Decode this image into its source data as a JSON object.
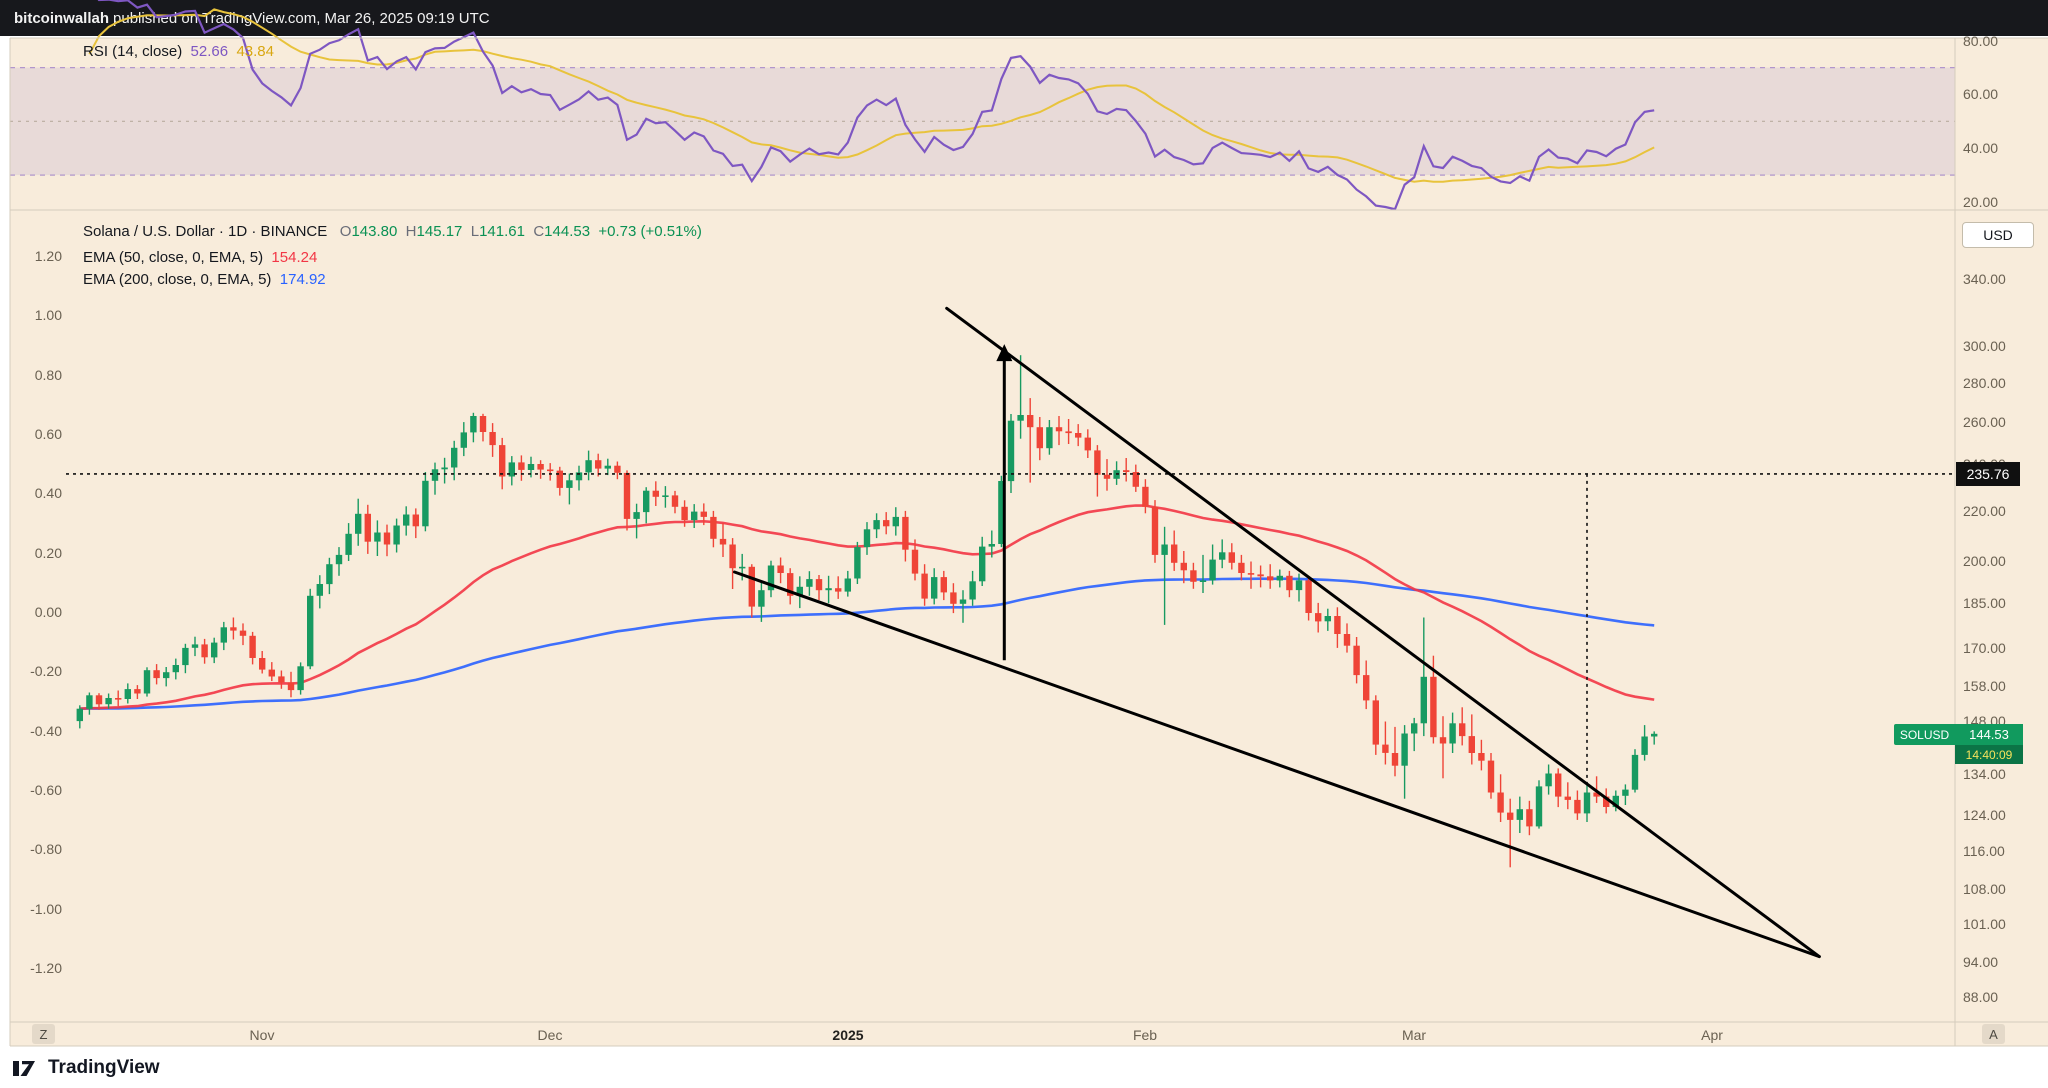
{
  "attribution": {
    "author": "bitcoinwallah",
    "rest": " published on TradingView.com, Mar 26, 2025 09:19 UTC"
  },
  "rsi_panel": {
    "legend": {
      "title": "RSI (14, close)",
      "value": "52.66",
      "ma_value": "43.84"
    },
    "axis_ticks": [
      80,
      60,
      40,
      20
    ]
  },
  "main_panel": {
    "legend": {
      "title": "Solana / U.S. Dollar · 1D · BINANCE",
      "o_label": "O",
      "o_value": "143.80",
      "h_label": "H",
      "h_value": "145.17",
      "l_label": "L",
      "l_value": "141.61",
      "c_label": "C",
      "c_value": "144.53",
      "change": "+0.73 (+0.51%)"
    },
    "ema50_legend": {
      "label": "EMA (50, close, 0, EMA, 5)",
      "value": "154.24"
    },
    "ema200_legend": {
      "label": "EMA (200, close, 0, EMA, 5)",
      "value": "174.92"
    },
    "currency": "USD",
    "level_label": "235.76",
    "ticker": {
      "symbol": "SOLUSD",
      "price": "144.53",
      "countdown": "14:40:09"
    },
    "right_axis_ticks": [
      340,
      300,
      280,
      260,
      240,
      220,
      200,
      185,
      170,
      158,
      148,
      134,
      124,
      116,
      108,
      101,
      94,
      88
    ],
    "left_axis_ticks": [
      1.2,
      1.0,
      0.8,
      0.6,
      0.4,
      0.2,
      0.0,
      -0.2,
      -0.4,
      -0.6,
      -0.8,
      -1.0,
      -1.2
    ]
  },
  "time_axis": {
    "left_button": "Z",
    "right_button": "A"
  },
  "footer": {
    "brand": "TradingView"
  },
  "colors": {
    "background": "#f8ecdb",
    "up": "#189a61",
    "down": "#ef4437",
    "ema50": "#f23645",
    "ema200": "#2962ff",
    "rsi": "#7e57c2",
    "rsi_ma": "#e8c33c",
    "trend": "#000000",
    "frame": "#d5ccbc"
  },
  "chart_data": {
    "type": "candlestick",
    "title": "Solana / U.S. Dollar · 1D · BINANCE",
    "symbol": "SOLUSD",
    "start_date": "2024-10-13",
    "log_scale": true,
    "price_ylim": [
      84,
      386
    ],
    "rsi_ylim": [
      17,
      81
    ],
    "rsi_bands": {
      "upper": 70,
      "middle": 50,
      "lower": 30
    },
    "indicators": {
      "ema50_period": 50,
      "ema200_period": 200,
      "rsi_period": 14,
      "rsi_ma_period": 14,
      "rsi_current": 52.66,
      "rsi_ma_current": 43.84,
      "ema50_current": 154.24,
      "ema200_current": 174.92
    },
    "last_bar": {
      "o": 143.8,
      "h": 145.17,
      "l": 141.61,
      "c": 144.53,
      "change": 0.73,
      "change_pct": 0.51
    },
    "x_ticks": [
      {
        "label": "Nov",
        "index": 19
      },
      {
        "label": "Dec",
        "index": 49
      },
      {
        "label": "2025",
        "index": 80,
        "major": true
      },
      {
        "label": "Feb",
        "index": 111
      },
      {
        "label": "Mar",
        "index": 139
      },
      {
        "label": "Apr",
        "index": 170
      }
    ],
    "annotations": {
      "trendlines": [
        {
          "i1": 90.3,
          "p1": 322,
          "i2": 181.2,
          "p2": 95
        },
        {
          "i1": 68.2,
          "p1": 196,
          "i2": 181.2,
          "p2": 95
        }
      ],
      "arrow": {
        "i": 96.3,
        "p_from": 166,
        "p_to": 301
      },
      "hline": {
        "p": 235.76
      },
      "vline": {
        "i": 157,
        "p_from": 235.76,
        "p_to": 131
      }
    },
    "ohlc": [
      [
        148.0,
        152.5,
        146.0,
        151.5
      ],
      [
        151.5,
        156.2,
        149.8,
        155.4
      ],
      [
        155.4,
        156.0,
        151.2,
        152.8
      ],
      [
        152.8,
        155.9,
        151.5,
        154.6
      ],
      [
        154.6,
        156.8,
        152.2,
        154.3
      ],
      [
        154.3,
        158.9,
        153.0,
        157.2
      ],
      [
        157.2,
        158.4,
        154.3,
        155.9
      ],
      [
        155.9,
        163.8,
        155.0,
        162.9
      ],
      [
        162.9,
        164.8,
        158.6,
        160.5
      ],
      [
        160.5,
        163.9,
        158.0,
        162.3
      ],
      [
        162.3,
        166.5,
        160.1,
        164.5
      ],
      [
        164.5,
        171.2,
        162.0,
        169.9
      ],
      [
        169.9,
        173.5,
        167.3,
        171.0
      ],
      [
        171.0,
        172.8,
        164.9,
        166.9
      ],
      [
        166.9,
        173.2,
        165.1,
        171.6
      ],
      [
        171.6,
        178.4,
        169.2,
        176.6
      ],
      [
        176.6,
        179.9,
        172.6,
        175.5
      ],
      [
        175.5,
        177.9,
        170.8,
        173.8
      ],
      [
        173.8,
        175.1,
        164.7,
        166.7
      ],
      [
        166.7,
        168.9,
        161.9,
        163.1
      ],
      [
        163.1,
        165.4,
        159.6,
        161.0
      ],
      [
        161.0,
        162.8,
        157.3,
        159.2
      ],
      [
        159.2,
        162.4,
        154.8,
        156.9
      ],
      [
        156.9,
        165.3,
        155.6,
        164.1
      ],
      [
        164.1,
        189.9,
        163.2,
        187.4
      ],
      [
        187.4,
        194.8,
        183.0,
        191.6
      ],
      [
        191.6,
        201.3,
        188.0,
        198.9
      ],
      [
        198.9,
        205.4,
        194.6,
        202.4
      ],
      [
        202.4,
        214.9,
        200.1,
        210.6
      ],
      [
        210.6,
        225.0,
        205.9,
        218.7
      ],
      [
        218.7,
        222.4,
        202.8,
        207.5
      ],
      [
        207.5,
        216.0,
        202.0,
        211.1
      ],
      [
        211.1,
        214.3,
        201.9,
        206.4
      ],
      [
        206.4,
        216.7,
        203.3,
        213.9
      ],
      [
        213.9,
        221.8,
        209.9,
        218.4
      ],
      [
        218.4,
        220.9,
        208.9,
        213.6
      ],
      [
        213.6,
        236.6,
        211.6,
        232.7
      ],
      [
        232.7,
        240.8,
        226.7,
        237.8
      ],
      [
        237.8,
        243.0,
        231.5,
        238.6
      ],
      [
        238.6,
        250.9,
        232.9,
        247.6
      ],
      [
        247.6,
        259.9,
        243.8,
        254.9
      ],
      [
        254.9,
        264.5,
        250.2,
        262.9
      ],
      [
        262.9,
        264.0,
        250.6,
        255.1
      ],
      [
        255.1,
        259.4,
        243.4,
        248.9
      ],
      [
        248.9,
        252.3,
        229.0,
        234.6
      ],
      [
        234.6,
        243.8,
        230.7,
        240.9
      ],
      [
        240.9,
        244.1,
        232.7,
        237.5
      ],
      [
        237.5,
        243.5,
        234.2,
        240.2
      ],
      [
        240.2,
        241.9,
        233.6,
        237.7
      ],
      [
        237.7,
        240.6,
        232.8,
        237.2
      ],
      [
        237.2,
        238.9,
        226.3,
        229.6
      ],
      [
        229.6,
        235.9,
        222.6,
        232.9
      ],
      [
        232.9,
        239.4,
        228.5,
        236.4
      ],
      [
        236.4,
        246.3,
        232.9,
        241.9
      ],
      [
        241.9,
        244.9,
        234.6,
        238.1
      ],
      [
        238.1,
        242.6,
        235.2,
        239.4
      ],
      [
        239.4,
        241.3,
        233.4,
        236.2
      ],
      [
        236.2,
        237.3,
        211.9,
        216.6
      ],
      [
        216.6,
        222.9,
        208.8,
        219.4
      ],
      [
        219.4,
        229.9,
        214.8,
        228.4
      ],
      [
        228.4,
        232.5,
        221.9,
        225.8
      ],
      [
        225.8,
        230.4,
        221.2,
        226.4
      ],
      [
        226.4,
        228.3,
        218.9,
        221.6
      ],
      [
        221.6,
        224.3,
        213.4,
        216.1
      ],
      [
        216.1,
        222.7,
        212.9,
        219.6
      ],
      [
        219.6,
        223.0,
        214.1,
        217.4
      ],
      [
        217.4,
        219.9,
        205.3,
        208.6
      ],
      [
        208.6,
        214.9,
        201.6,
        206.4
      ],
      [
        206.4,
        208.9,
        189.8,
        197.4
      ],
      [
        197.4,
        202.8,
        192.9,
        197.9
      ],
      [
        197.9,
        198.9,
        179.9,
        183.6
      ],
      [
        183.6,
        192.4,
        178.4,
        189.4
      ],
      [
        189.4,
        200.2,
        186.9,
        198.4
      ],
      [
        198.4,
        201.4,
        191.9,
        195.6
      ],
      [
        195.6,
        197.4,
        184.4,
        187.4
      ],
      [
        187.4,
        194.4,
        183.1,
        190.6
      ],
      [
        190.6,
        196.3,
        187.4,
        193.4
      ],
      [
        193.4,
        194.9,
        185.9,
        189.4
      ],
      [
        189.4,
        194.6,
        184.8,
        190.1
      ],
      [
        190.1,
        194.4,
        186.3,
        188.9
      ],
      [
        188.9,
        196.4,
        187.1,
        193.6
      ],
      [
        193.6,
        207.4,
        191.6,
        205.4
      ],
      [
        205.4,
        215.3,
        202.4,
        212.4
      ],
      [
        212.4,
        218.9,
        208.9,
        216.1
      ],
      [
        216.1,
        219.4,
        210.4,
        213.6
      ],
      [
        213.6,
        221.4,
        209.9,
        217.4
      ],
      [
        217.4,
        219.9,
        199.9,
        204.4
      ],
      [
        204.4,
        208.4,
        192.9,
        195.4
      ],
      [
        195.4,
        198.9,
        183.9,
        186.4
      ],
      [
        186.4,
        197.4,
        184.4,
        194.1
      ],
      [
        194.1,
        196.4,
        185.9,
        188.6
      ],
      [
        188.6,
        191.9,
        181.4,
        184.6
      ],
      [
        184.6,
        189.4,
        178.1,
        186.1
      ],
      [
        186.1,
        196.4,
        183.9,
        192.6
      ],
      [
        192.6,
        209.4,
        190.9,
        205.6
      ],
      [
        205.6,
        211.9,
        201.4,
        206.6
      ],
      [
        206.6,
        234.9,
        205.4,
        232.6
      ],
      [
        232.6,
        263.9,
        227.4,
        260.6
      ],
      [
        260.6,
        294.8,
        251.9,
        263.4
      ],
      [
        263.4,
        271.9,
        231.9,
        257.4
      ],
      [
        257.4,
        262.4,
        241.9,
        247.4
      ],
      [
        247.4,
        260.9,
        244.4,
        257.4
      ],
      [
        257.4,
        262.9,
        248.9,
        255.4
      ],
      [
        255.4,
        261.4,
        249.4,
        254.6
      ],
      [
        254.6,
        258.9,
        248.4,
        252.4
      ],
      [
        252.4,
        256.4,
        242.9,
        246.4
      ],
      [
        246.4,
        248.9,
        225.9,
        235.4
      ],
      [
        235.4,
        242.4,
        228.4,
        233.6
      ],
      [
        233.6,
        241.4,
        230.9,
        237.4
      ],
      [
        237.4,
        242.9,
        232.4,
        236.6
      ],
      [
        236.6,
        239.9,
        227.9,
        230.1
      ],
      [
        230.1,
        233.4,
        218.9,
        221.6
      ],
      [
        221.6,
        224.4,
        199.4,
        202.4
      ],
      [
        202.4,
        213.4,
        177.4,
        206.4
      ],
      [
        206.4,
        211.9,
        196.4,
        199.4
      ],
      [
        199.4,
        203.9,
        191.9,
        196.6
      ],
      [
        196.6,
        199.4,
        189.9,
        192.4
      ],
      [
        192.4,
        202.4,
        188.4,
        192.9
      ],
      [
        192.9,
        206.4,
        191.4,
        200.6
      ],
      [
        200.6,
        208.4,
        197.4,
        203.4
      ],
      [
        203.4,
        206.9,
        196.9,
        199.4
      ],
      [
        199.4,
        202.4,
        192.9,
        195.6
      ],
      [
        195.6,
        199.9,
        189.9,
        195.1
      ],
      [
        195.1,
        198.4,
        190.4,
        194.4
      ],
      [
        194.4,
        198.9,
        189.9,
        192.9
      ],
      [
        192.9,
        196.9,
        190.4,
        194.6
      ],
      [
        194.6,
        196.4,
        186.9,
        189.4
      ],
      [
        189.4,
        195.4,
        185.4,
        192.9
      ],
      [
        192.9,
        194.4,
        178.9,
        181.4
      ],
      [
        181.4,
        184.9,
        174.9,
        178.6
      ],
      [
        178.6,
        182.9,
        175.4,
        180.4
      ],
      [
        180.4,
        183.4,
        169.9,
        174.4
      ],
      [
        174.4,
        177.9,
        168.4,
        170.6
      ],
      [
        170.6,
        173.4,
        158.9,
        161.4
      ],
      [
        161.4,
        165.9,
        151.4,
        153.9
      ],
      [
        153.9,
        155.4,
        138.9,
        141.6
      ],
      [
        141.6,
        147.9,
        136.4,
        139.4
      ],
      [
        139.4,
        146.4,
        133.4,
        136.1
      ],
      [
        136.1,
        146.9,
        127.9,
        144.6
      ],
      [
        144.6,
        148.9,
        139.9,
        147.4
      ],
      [
        147.4,
        179.9,
        143.9,
        160.9
      ],
      [
        160.9,
        167.4,
        141.9,
        143.6
      ],
      [
        143.6,
        149.4,
        132.9,
        141.9
      ],
      [
        141.9,
        150.4,
        139.4,
        147.4
      ],
      [
        147.4,
        151.9,
        141.4,
        143.9
      ],
      [
        143.9,
        149.9,
        136.4,
        139.4
      ],
      [
        139.4,
        142.9,
        134.9,
        137.4
      ],
      [
        137.4,
        139.4,
        127.9,
        129.4
      ],
      [
        129.4,
        133.9,
        122.4,
        124.6
      ],
      [
        124.6,
        127.9,
        112.4,
        122.9
      ],
      [
        122.9,
        128.4,
        119.9,
        125.4
      ],
      [
        125.4,
        127.4,
        119.4,
        121.4
      ],
      [
        121.4,
        132.4,
        120.9,
        130.9
      ],
      [
        130.9,
        136.4,
        128.9,
        134.1
      ],
      [
        134.1,
        135.4,
        125.9,
        128.4
      ],
      [
        128.4,
        131.9,
        125.4,
        127.6
      ],
      [
        127.6,
        129.9,
        122.9,
        124.4
      ],
      [
        124.4,
        131.4,
        122.4,
        129.4
      ],
      [
        129.4,
        133.4,
        126.9,
        128.4
      ],
      [
        128.4,
        130.4,
        124.4,
        125.9
      ],
      [
        125.9,
        129.9,
        124.9,
        128.6
      ],
      [
        128.6,
        131.4,
        126.4,
        130.1
      ],
      [
        130.1,
        140.4,
        129.4,
        138.9
      ],
      [
        138.9,
        146.9,
        137.4,
        143.8
      ],
      [
        143.8,
        145.17,
        141.61,
        144.53
      ]
    ]
  }
}
